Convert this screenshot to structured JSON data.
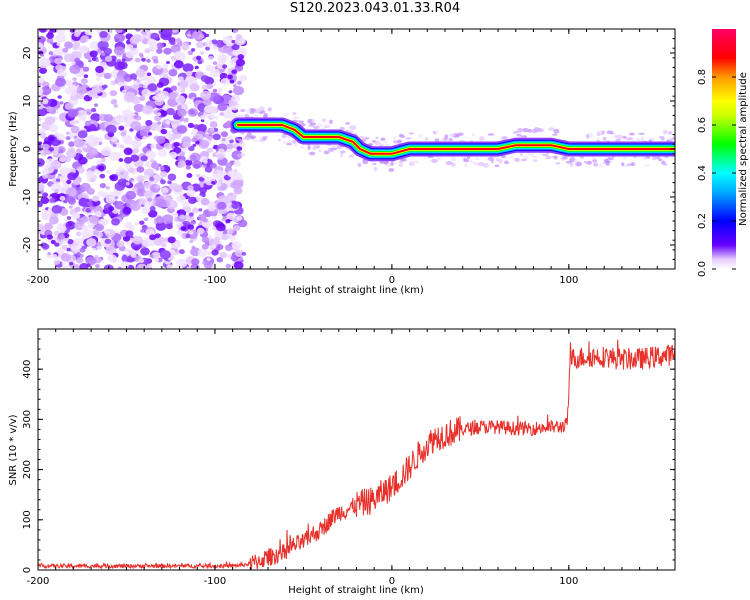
{
  "title": "S120.2023.043.01.33.R04",
  "chart_data": [
    {
      "type": "heatmap",
      "xlabel": "Height of straight line (km)",
      "ylabel": "Frequency (Hz)",
      "xlim": [
        -200,
        160
      ],
      "ylim": [
        -25,
        25
      ],
      "x_ticks": [
        -200,
        -100,
        0,
        100
      ],
      "y_ticks": [
        -20,
        -10,
        0,
        10,
        20
      ],
      "noise_region_x": [
        -200,
        -87
      ],
      "signal_line": {
        "x": [
          -87,
          -70,
          -62,
          -55,
          -50,
          -40,
          -30,
          -22,
          -18,
          -12,
          -5,
          0,
          10,
          30,
          60,
          70,
          80,
          90,
          100,
          130,
          160
        ],
        "y": [
          5,
          5,
          5,
          4,
          2.5,
          2.5,
          2.5,
          1.5,
          0,
          -1,
          -1,
          -1,
          0,
          0,
          0,
          0.8,
          0.8,
          0.8,
          0,
          0,
          0
        ]
      },
      "colorbar": {
        "label": "Normalized spectral amplitude",
        "range": [
          0.0,
          1.0
        ],
        "ticks": [
          0.0,
          0.2,
          0.4,
          0.6,
          0.8
        ],
        "tick_labels": [
          "0.0",
          "0.2",
          "0.4",
          "0.6",
          "0.8"
        ],
        "colors": [
          "#ffffff",
          "#6600ff",
          "#0000ff",
          "#00ffff",
          "#00ff00",
          "#ffff00",
          "#ff7f00",
          "#ff0000",
          "#ff0066"
        ]
      }
    },
    {
      "type": "line",
      "xlabel": "Height of straight line (km)",
      "ylabel": "SNR (10 * v/v)",
      "xlim": [
        -200,
        160
      ],
      "ylim": [
        0,
        480
      ],
      "x_ticks": [
        -200,
        -100,
        0,
        100
      ],
      "y_ticks": [
        0,
        100,
        200,
        300,
        400
      ],
      "color": "#e8302a",
      "series": [
        {
          "x": [
            -200,
            -120,
            -90,
            -80,
            -70,
            -60,
            -55,
            -50,
            -45,
            -40,
            -35,
            -30,
            -25,
            -20,
            -15,
            -10,
            -5,
            0,
            5,
            10,
            15,
            20,
            25,
            30,
            35,
            40,
            50,
            60,
            70,
            80,
            90,
            95,
            99,
            101,
            110,
            120,
            130,
            140,
            150,
            160
          ],
          "y": [
            8,
            8,
            8,
            12,
            25,
            35,
            50,
            55,
            70,
            80,
            100,
            115,
            120,
            130,
            135,
            140,
            155,
            165,
            185,
            205,
            230,
            250,
            265,
            270,
            275,
            280,
            285,
            285,
            282,
            282,
            285,
            285,
            290,
            420,
            425,
            425,
            420,
            420,
            425,
            430
          ]
        }
      ]
    }
  ]
}
